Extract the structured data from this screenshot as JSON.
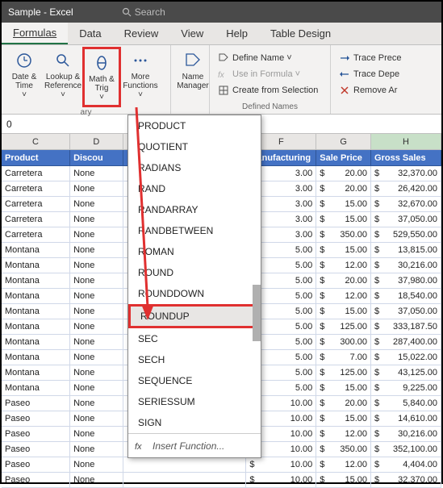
{
  "title_bar": {
    "doc": "Sample",
    "app": "- Excel",
    "search_placeholder": "Search"
  },
  "menu": {
    "tabs": [
      "Formulas",
      "Data",
      "Review",
      "View",
      "Help",
      "Table Design"
    ],
    "active": 0
  },
  "ribbon": {
    "buttons": [
      {
        "line1": "Date &",
        "line2": "Time",
        "drop": "˅"
      },
      {
        "line1": "Lookup &",
        "line2": "Reference",
        "drop": "˅"
      },
      {
        "line1": "Math &",
        "line2": "Trig",
        "drop": "˅",
        "hl": true
      },
      {
        "line1": "More",
        "line2": "Functions",
        "drop": "˅"
      }
    ],
    "group1_label": "ary",
    "name_manager": "Name Manager",
    "defined": [
      {
        "label": "Define Name",
        "drop": "˅"
      },
      {
        "label": "Use in Formula",
        "drop": "˅"
      },
      {
        "label": "Create from Selection"
      }
    ],
    "defined_label": "Defined Names",
    "trace": [
      {
        "label": "Trace Prece"
      },
      {
        "label": "Trace Depe"
      },
      {
        "label": "Remove Ar"
      }
    ]
  },
  "formula_cell": "0",
  "columns": {
    "letters": [
      "C",
      "D",
      "F",
      "G",
      "H"
    ],
    "names": [
      "Product",
      "Discou",
      "Manufacturing",
      "Sale Price",
      "Gross Sales"
    ]
  },
  "rows": [
    {
      "product": "Carretera",
      "disc": "None",
      "mfg": "3.00",
      "price": "20.00",
      "gross": "32,370.00"
    },
    {
      "product": "Carretera",
      "disc": "None",
      "mfg": "3.00",
      "price": "20.00",
      "gross": "26,420.00"
    },
    {
      "product": "Carretera",
      "disc": "None",
      "mfg": "3.00",
      "price": "15.00",
      "gross": "32,670.00"
    },
    {
      "product": "Carretera",
      "disc": "None",
      "mfg": "3.00",
      "price": "15.00",
      "gross": "37,050.00"
    },
    {
      "product": "Carretera",
      "disc": "None",
      "mfg": "3.00",
      "price": "350.00",
      "gross": "529,550.00"
    },
    {
      "product": "Montana",
      "disc": "None",
      "mfg": "5.00",
      "price": "15.00",
      "gross": "13,815.00"
    },
    {
      "product": "Montana",
      "disc": "None",
      "mfg": "5.00",
      "price": "12.00",
      "gross": "30,216.00"
    },
    {
      "product": "Montana",
      "disc": "None",
      "mfg": "5.00",
      "price": "20.00",
      "gross": "37,980.00"
    },
    {
      "product": "Montana",
      "disc": "None",
      "mfg": "5.00",
      "price": "12.00",
      "gross": "18,540.00"
    },
    {
      "product": "Montana",
      "disc": "None",
      "mfg": "5.00",
      "price": "15.00",
      "gross": "37,050.00"
    },
    {
      "product": "Montana",
      "disc": "None",
      "mfg": "5.00",
      "price": "125.00",
      "gross": "333,187.50"
    },
    {
      "product": "Montana",
      "disc": "None",
      "mfg": "5.00",
      "price": "300.00",
      "gross": "287,400.00"
    },
    {
      "product": "Montana",
      "disc": "None",
      "mfg": "5.00",
      "price": "7.00",
      "gross": "15,022.00"
    },
    {
      "product": "Montana",
      "disc": "None",
      "mfg": "5.00",
      "price": "125.00",
      "gross": "43,125.00"
    },
    {
      "product": "Montana",
      "disc": "None",
      "mfg": "5.00",
      "price": "15.00",
      "gross": "9,225.00"
    },
    {
      "product": "Paseo",
      "disc": "None",
      "mfg": "10.00",
      "price": "20.00",
      "gross": "5,840.00"
    },
    {
      "product": "Paseo",
      "disc": "None",
      "mfg": "10.00",
      "price": "15.00",
      "gross": "14,610.00"
    },
    {
      "product": "Paseo",
      "disc": "None",
      "mfg": "10.00",
      "price": "12.00",
      "gross": "30,216.00"
    },
    {
      "product": "Paseo",
      "disc": "None",
      "mfg": "10.00",
      "price": "350.00",
      "gross": "352,100.00"
    },
    {
      "product": "Paseo",
      "disc": "None",
      "mfg": "10.00",
      "price": "12.00",
      "gross": "4,404.00"
    },
    {
      "product": "Paseo",
      "disc": "None",
      "mfg": "10.00",
      "price": "15.00",
      "gross": "32,370.00"
    }
  ],
  "currency": "$",
  "dropdown": {
    "items": [
      "PRODUCT",
      "QUOTIENT",
      "RADIANS",
      "RAND",
      "RANDARRAY",
      "RANDBETWEEN",
      "ROMAN",
      "ROUND",
      "ROUNDDOWN",
      "ROUNDUP",
      "SEC",
      "SECH",
      "SEQUENCE",
      "SERIESSUM",
      "SIGN"
    ],
    "highlighted_index": 9,
    "footer": "Insert Function..."
  },
  "colors": {
    "title_bg": "#4a4a4a",
    "ribbon_bg": "#f3f2f1",
    "blue_header": "#4472c4",
    "highlight_border": "#e03030",
    "excel_green": "#217346",
    "grid_border": "#d0d8e8"
  }
}
